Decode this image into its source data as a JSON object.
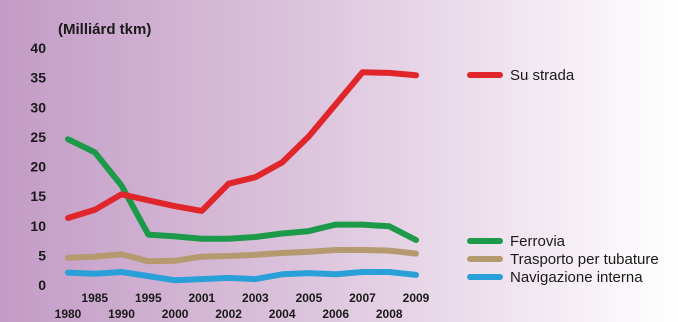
{
  "chart_data": {
    "type": "line",
    "ylabel": "(Milliárd tkm)",
    "ylim": [
      0,
      40
    ],
    "yticks": [
      "0",
      "5",
      "10",
      "15",
      "20",
      "25",
      "30",
      "35",
      "40"
    ],
    "x": [
      "1980",
      "1985",
      "1990",
      "1995",
      "2000",
      "2001",
      "2002",
      "2003",
      "2004",
      "2005",
      "2006",
      "2007",
      "2008",
      "2009"
    ],
    "series": [
      {
        "name": "Su strada",
        "color": "#e0262a",
        "values": [
          11.3,
          12.7,
          15.3,
          14.3,
          13.3,
          12.5,
          17.1,
          18.2,
          20.7,
          25.1,
          30.5,
          35.9,
          35.8,
          35.4
        ]
      },
      {
        "name": "Ferrovia",
        "color": "#1c9a4a",
        "values": [
          24.6,
          22.4,
          16.8,
          8.5,
          8.2,
          7.8,
          7.8,
          8.1,
          8.7,
          9.1,
          10.2,
          10.2,
          9.9,
          7.6
        ]
      },
      {
        "name": "Trasporto per tubature",
        "color": "#b59a70",
        "values": [
          4.6,
          4.8,
          5.2,
          4.0,
          4.1,
          4.8,
          4.9,
          5.1,
          5.4,
          5.6,
          5.9,
          5.9,
          5.8,
          5.3
        ]
      },
      {
        "name": "Navigazione interna",
        "color": "#2aa0d9",
        "values": [
          2.1,
          1.9,
          2.2,
          1.5,
          0.8,
          1.0,
          1.2,
          1.0,
          1.8,
          2.0,
          1.8,
          2.2,
          2.2,
          1.7
        ]
      }
    ],
    "legend_position": "right",
    "grid": false
  }
}
